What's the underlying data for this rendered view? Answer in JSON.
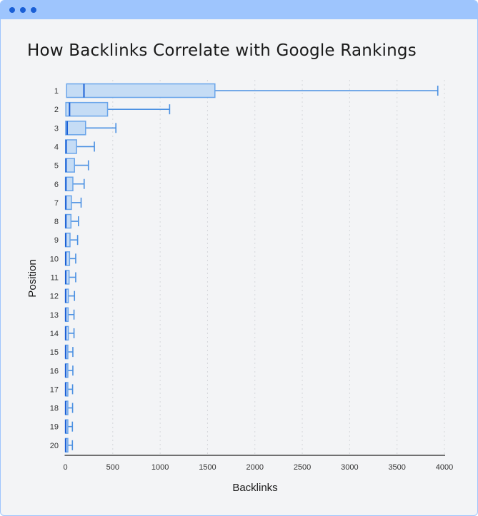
{
  "window": {
    "controls": [
      "dot-1",
      "dot-2",
      "dot-3"
    ],
    "header_color": "#9ec5fd",
    "dot_color": "#1a5fd6"
  },
  "chart_data": {
    "type": "boxplot",
    "orientation": "horizontal",
    "title": "How Backlinks Correlate with Google Rankings",
    "xlabel": "Backlinks",
    "ylabel": "Position",
    "xlim": [
      0,
      4000
    ],
    "xticks": [
      0,
      500,
      1000,
      1500,
      2000,
      2500,
      3000,
      3500,
      4000
    ],
    "grid": "vertical dotted",
    "box_color": "#c5dcf5",
    "line_color": "#4a90e2",
    "categories": [
      "1",
      "2",
      "3",
      "4",
      "5",
      "6",
      "7",
      "8",
      "9",
      "10",
      "11",
      "12",
      "13",
      "14",
      "15",
      "16",
      "17",
      "18",
      "19",
      "20"
    ],
    "boxes": [
      {
        "min": 0,
        "q1": 13,
        "median": 196,
        "q3": 1578,
        "max": 3930
      },
      {
        "min": 0,
        "q1": 5,
        "median": 44,
        "q3": 445,
        "max": 1100
      },
      {
        "min": 0,
        "q1": 3,
        "median": 19,
        "q3": 213,
        "max": 533
      },
      {
        "min": 0,
        "q1": 2,
        "median": 8,
        "q3": 118,
        "max": 306
      },
      {
        "min": 0,
        "q1": 2,
        "median": 7,
        "q3": 96,
        "max": 243
      },
      {
        "min": 0,
        "q1": 1,
        "median": 6,
        "q3": 79,
        "max": 198
      },
      {
        "min": 0,
        "q1": 1,
        "median": 5,
        "q3": 64,
        "max": 166
      },
      {
        "min": 0,
        "q1": 1,
        "median": 5,
        "q3": 59,
        "max": 138
      },
      {
        "min": 0,
        "q1": 1,
        "median": 4,
        "q3": 49,
        "max": 129
      },
      {
        "min": 0,
        "q1": 1,
        "median": 4,
        "q3": 44,
        "max": 109
      },
      {
        "min": 0,
        "q1": 1,
        "median": 4,
        "q3": 39,
        "max": 109
      },
      {
        "min": 0,
        "q1": 1,
        "median": 3,
        "q3": 31,
        "max": 96
      },
      {
        "min": 0,
        "q1": 1,
        "median": 3,
        "q3": 29,
        "max": 91
      },
      {
        "min": 0,
        "q1": 1,
        "median": 3,
        "q3": 31,
        "max": 91
      },
      {
        "min": 0,
        "q1": 1,
        "median": 3,
        "q3": 26,
        "max": 79
      },
      {
        "min": 0,
        "q1": 1,
        "median": 3,
        "q3": 26,
        "max": 79
      },
      {
        "min": 0,
        "q1": 1,
        "median": 3,
        "q3": 26,
        "max": 76
      },
      {
        "min": 0,
        "q1": 1,
        "median": 3,
        "q3": 26,
        "max": 76
      },
      {
        "min": 0,
        "q1": 1,
        "median": 3,
        "q3": 26,
        "max": 74
      },
      {
        "min": 0,
        "q1": 1,
        "median": 3,
        "q3": 26,
        "max": 74
      }
    ]
  }
}
